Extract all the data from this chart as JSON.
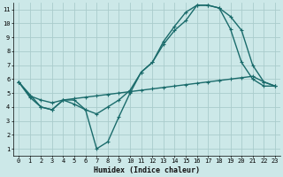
{
  "xlabel": "Humidex (Indice chaleur)",
  "bg_color": "#cce8e8",
  "grid_color": "#aacccc",
  "line_color": "#1a6b6b",
  "xlim": [
    -0.5,
    23.5
  ],
  "ylim": [
    0.5,
    11.5
  ],
  "xticks": [
    0,
    1,
    2,
    3,
    4,
    5,
    6,
    7,
    8,
    9,
    10,
    11,
    12,
    13,
    14,
    15,
    16,
    17,
    18,
    19,
    20,
    21,
    22,
    23
  ],
  "yticks": [
    1,
    2,
    3,
    4,
    5,
    6,
    7,
    8,
    9,
    10,
    11
  ],
  "line1_x": [
    0,
    1,
    2,
    3,
    4,
    5,
    6,
    7,
    8,
    9,
    10,
    11,
    12,
    13,
    14,
    15,
    16,
    17,
    18,
    19,
    20,
    21,
    22,
    23
  ],
  "line1_y": [
    5.8,
    4.7,
    4.0,
    3.8,
    4.5,
    4.5,
    3.8,
    3.5,
    4.0,
    4.5,
    5.2,
    6.5,
    7.2,
    8.7,
    9.8,
    10.8,
    11.3,
    11.3,
    11.1,
    9.6,
    7.2,
    6.0,
    5.5,
    5.5
  ],
  "line2_x": [
    0,
    2,
    3,
    4,
    5,
    6,
    7,
    8,
    9,
    10,
    11,
    12,
    13,
    14,
    15,
    16,
    17,
    18,
    19,
    20,
    21,
    22,
    23
  ],
  "line2_y": [
    5.8,
    4.0,
    3.8,
    4.5,
    4.2,
    3.8,
    1.0,
    1.5,
    3.3,
    5.0,
    6.5,
    7.2,
    8.5,
    9.5,
    10.2,
    11.3,
    11.3,
    11.1,
    10.5,
    9.5,
    7.0,
    5.8,
    5.5
  ],
  "line3_x": [
    0,
    1,
    2,
    3,
    4,
    5,
    6,
    7,
    8,
    9,
    10,
    11,
    12,
    13,
    14,
    15,
    16,
    17,
    18,
    19,
    20,
    21,
    22,
    23
  ],
  "line3_y": [
    5.8,
    4.8,
    4.5,
    4.3,
    4.5,
    4.6,
    4.7,
    4.8,
    4.9,
    5.0,
    5.1,
    5.2,
    5.3,
    5.4,
    5.5,
    5.6,
    5.7,
    5.8,
    5.9,
    6.0,
    6.1,
    6.2,
    5.8,
    5.5
  ],
  "linewidth": 1.0,
  "markersize": 3.5
}
